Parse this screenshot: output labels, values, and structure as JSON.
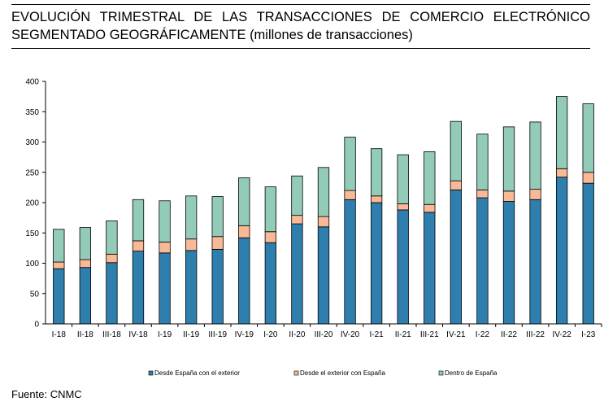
{
  "title": {
    "line1": "EVOLUCIÓN TRIMESTRAL DE LAS TRANSACCIONES DE COMERCIO ELECTRÓNICO",
    "line2_caps": "SEGMENTADO GEOGRÁFICAMENTE",
    "line2_units": "(millones de transacciones)"
  },
  "source": "Fuente: CNMC",
  "chart_data": {
    "type": "bar",
    "stacked": true,
    "categories": [
      "I-18",
      "II-18",
      "III-18",
      "IV-18",
      "I-19",
      "II-19",
      "III-19",
      "IV-19",
      "I-20",
      "II-20",
      "III-20",
      "IV-20",
      "I-21",
      "II-21",
      "III-21",
      "IV-21",
      "I-22",
      "II-22",
      "III-22",
      "IV-22",
      "I-23"
    ],
    "series": [
      {
        "name": "Desde España con el exterior",
        "color": "#2e7fae",
        "values": [
          91,
          93,
          101,
          120,
          117,
          121,
          123,
          142,
          134,
          165,
          160,
          205,
          200,
          188,
          184,
          221,
          208,
          202,
          205,
          242,
          232
        ]
      },
      {
        "name": "Desde el exterior con España",
        "color": "#f9b896",
        "values": [
          11,
          13,
          14,
          17,
          18,
          19,
          21,
          20,
          18,
          14,
          17,
          15,
          11,
          10,
          13,
          15,
          13,
          17,
          17,
          14,
          18
        ]
      },
      {
        "name": "Dentro de España",
        "color": "#93cbb9",
        "values": [
          54,
          53,
          55,
          68,
          68,
          71,
          66,
          79,
          74,
          65,
          81,
          88,
          78,
          81,
          87,
          98,
          92,
          106,
          111,
          119,
          113
        ]
      }
    ],
    "ylim": [
      0,
      400
    ],
    "yticks": [
      0,
      50,
      100,
      150,
      200,
      250,
      300,
      350,
      400
    ],
    "legend_position": "bottom",
    "grid": false
  }
}
